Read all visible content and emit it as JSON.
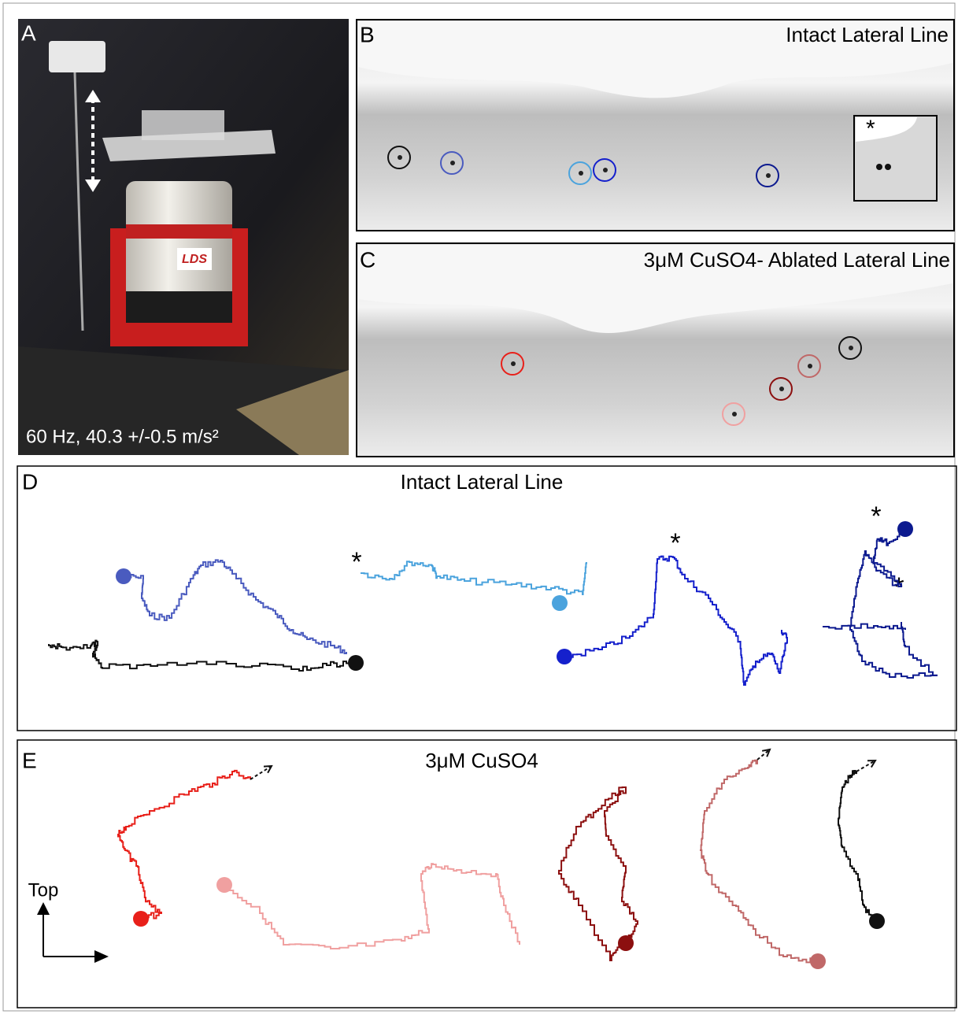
{
  "panels": {
    "a": {
      "label": "A",
      "caption": "60 Hz, 40.3 +/-0.5 m/s²",
      "brand": "LDS"
    },
    "b": {
      "label": "B",
      "title": "Intact Lateral Line",
      "marker": "*"
    },
    "c": {
      "label": "C",
      "title": "3μM CuSO4- Ablated Lateral Line"
    },
    "d": {
      "label": "D",
      "title": "Intact Lateral Line",
      "markers": [
        "*",
        "*",
        "*",
        "*"
      ]
    },
    "e": {
      "label": "E",
      "title": "3μM CuSO4",
      "axis_label": "Top"
    }
  }
}
